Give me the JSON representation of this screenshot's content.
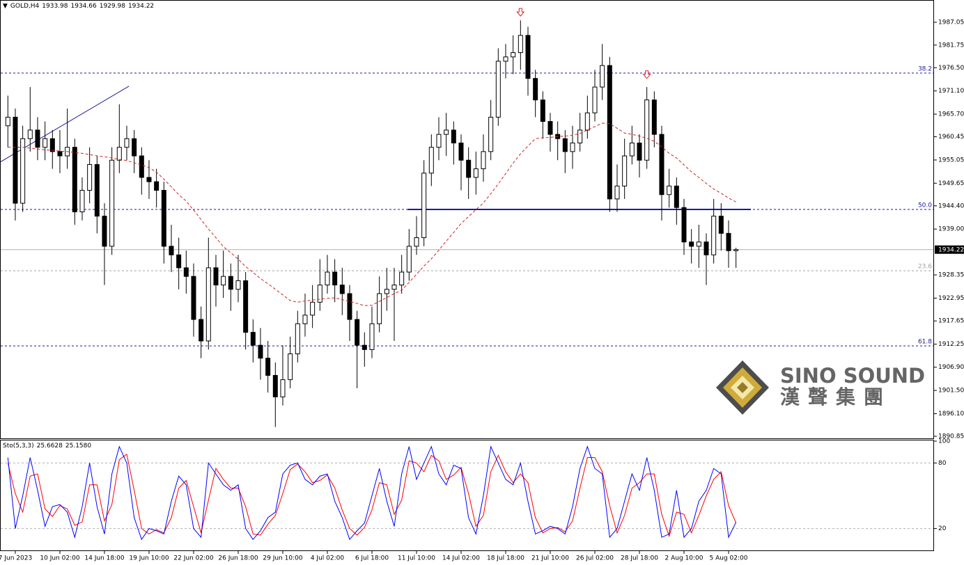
{
  "chart_data": [
    {
      "type": "candlestick",
      "title": "GOLD,H4",
      "ylim": [
        1890.85,
        1987.05
      ],
      "yticks": [
        1987.05,
        1981.75,
        {
          "value": 1976.5,
          "label": "1976.50"
        },
        {
          "value": 1971.1,
          "label": "1971.10"
        },
        {
          "value": 1965.7,
          "label": "1965.70"
        },
        1960.45,
        1955.05,
        1949.65,
        {
          "value": 1944.4,
          "label": "1944.40"
        },
        {
          "value": 1939,
          "label": "1939.00"
        },
        1928.35,
        1922.95,
        1917.65,
        1912.25,
        {
          "value": 1906.9,
          "label": "1906.90"
        },
        {
          "value": 1901.5,
          "label": "1901.50"
        },
        {
          "value": 1896.1,
          "label": "1896.10"
        },
        1890.85
      ],
      "xticks": [
        {
          "value": 1,
          "label": "7 Jun 2023"
        },
        {
          "value": 7,
          "label": "10 Jun 02:00"
        },
        {
          "value": 13,
          "label": "14 Jun 18:00"
        },
        {
          "value": 19,
          "label": "19 Jun 10:00"
        },
        {
          "value": 25,
          "label": "22 Jun 02:00"
        },
        {
          "value": 31,
          "label": "26 Jun 18:00"
        },
        {
          "value": 37,
          "label": "29 Jun 10:00"
        },
        {
          "value": 43,
          "label": "4 Jul 02:00"
        },
        {
          "value": 49,
          "label": "6 Jul 18:00"
        },
        {
          "value": 55,
          "label": "11 Jul 10:00"
        },
        {
          "value": 61,
          "label": "14 Jul 02:00"
        },
        {
          "value": 67,
          "label": "18 Jul 18:00"
        },
        {
          "value": 73,
          "label": "21 Jul 10:00"
        },
        {
          "value": 79,
          "label": "26 Jul 02:00"
        },
        {
          "value": 85,
          "label": "28 Jul 18:00"
        },
        {
          "value": 91,
          "label": "2 Aug 10:00"
        },
        {
          "value": 97,
          "label": "5 Aug 02:00"
        }
      ],
      "open": [
        1963,
        1965,
        1945,
        1960,
        1962,
        1958,
        1960,
        1957,
        1956,
        1958,
        1943,
        1948,
        1954,
        1942,
        1935,
        1955,
        1958,
        1960,
        1956,
        1951,
        1950,
        1948,
        1935,
        1933,
        1930,
        1928,
        1918,
        1913,
        1930,
        1926,
        1928,
        1925,
        1927,
        1915,
        1912,
        1909,
        1905,
        1900,
        1904,
        1910,
        1917,
        1919,
        1922,
        1926,
        1929,
        1926,
        1924,
        1918,
        1912,
        1911,
        1917,
        1924,
        1925,
        1926,
        1929,
        1935,
        1937,
        1952,
        1958,
        1961,
        1962,
        1959,
        1955,
        1951,
        1953,
        1957,
        1965,
        1978,
        1979,
        1980,
        1984,
        1974,
        1969,
        1964,
        1961,
        1960,
        1957,
        1959,
        1962,
        1966,
        1972,
        1977,
        1946,
        1949,
        1956,
        1959,
        1955,
        1969,
        1961,
        1947,
        1949,
        1944,
        1936,
        1935,
        1936,
        1933,
        1942,
        1938,
        1933.98
      ],
      "high": [
        1970,
        1967,
        1963,
        1972,
        1965,
        1964,
        1962,
        1962,
        1967,
        1960,
        1951,
        1958,
        1956,
        1945,
        1958,
        1968,
        1963,
        1962,
        1958,
        1955,
        1953,
        1950,
        1940,
        1937,
        1934,
        1931,
        1921,
        1937,
        1933,
        1934,
        1931,
        1933,
        1929,
        1918,
        1916,
        1913,
        1908,
        1912,
        1914,
        1920,
        1924,
        1926,
        1932,
        1933,
        1932,
        1930,
        1926,
        1920,
        1915,
        1921,
        1928,
        1930,
        1930,
        1933,
        1939,
        1942,
        1955,
        1961,
        1965,
        1966,
        1964,
        1961,
        1958,
        1957,
        1961,
        1969,
        1981,
        1982,
        1984,
        1987.5,
        1986,
        1976,
        1971,
        1966,
        1964,
        1962,
        1963,
        1966,
        1970,
        1976,
        1982,
        1979,
        1954,
        1960,
        1963,
        1961,
        1972,
        1971,
        1963,
        1953,
        1951,
        1946,
        1939,
        1940,
        1938,
        1946,
        1945,
        1941,
        1934.66
      ],
      "low": [
        1958,
        1941,
        1943,
        1957,
        1955,
        1955,
        1953,
        1952,
        1953,
        1940,
        1941,
        1945,
        1938,
        1926,
        1933,
        1952,
        1955,
        1952,
        1947,
        1946,
        1944,
        1931,
        1929,
        1925,
        1924,
        1914,
        1909,
        1911,
        1921,
        1923,
        1920,
        1922,
        1911,
        1908,
        1904,
        1901,
        1893,
        1898,
        1902,
        1908,
        1914,
        1916,
        1920,
        1924,
        1922,
        1919,
        1913,
        1902,
        1907,
        1909,
        1915,
        1920,
        1913,
        1924,
        1927,
        1933,
        1935,
        1949,
        1955,
        1956,
        1954,
        1948,
        1946,
        1947,
        1950,
        1955,
        1963,
        1974,
        1975,
        1976,
        1970,
        1965,
        1960,
        1957,
        1955,
        1952,
        1953,
        1957,
        1960,
        1964,
        1969,
        1943,
        1943,
        1946,
        1954,
        1951,
        1953,
        1958,
        1941,
        1944,
        1940,
        1933,
        1931,
        1930,
        1926,
        1931,
        1934,
        1930,
        1929.98
      ],
      "close": [
        1965,
        1945,
        1960,
        1962,
        1958,
        1960,
        1957,
        1956,
        1958,
        1943,
        1948,
        1954,
        1942,
        1935,
        1955,
        1958,
        1960,
        1956,
        1951,
        1950,
        1948,
        1935,
        1933,
        1930,
        1928,
        1918,
        1913,
        1930,
        1926,
        1928,
        1925,
        1927,
        1915,
        1912,
        1909,
        1905,
        1900,
        1904,
        1910,
        1917,
        1919,
        1922,
        1926,
        1929,
        1926,
        1924,
        1918,
        1912,
        1911,
        1917,
        1924,
        1925,
        1926,
        1929,
        1935,
        1937,
        1952,
        1958,
        1961,
        1962,
        1959,
        1955,
        1951,
        1953,
        1957,
        1965,
        1978,
        1979,
        1980,
        1984,
        1974,
        1969,
        1964,
        1961,
        1960,
        1957,
        1959,
        1962,
        1966,
        1972,
        1977,
        1946,
        1949,
        1956,
        1959,
        1955,
        1969,
        1961,
        1947,
        1949,
        1944,
        1936,
        1935,
        1936,
        1933,
        1942,
        1938,
        1933.98,
        1934.22
      ],
      "ma_color": "#d42020",
      "ma_values": [
        1958,
        1958,
        1958,
        1957.8,
        1957.6,
        1957.4,
        1957.3,
        1957.1,
        1957,
        1956.8,
        1956.6,
        1956.3,
        1956,
        1955.8,
        1955.5,
        1955.2,
        1954.9,
        1954.4,
        1953.9,
        1953.3,
        1952.2,
        1950.6,
        1948.8,
        1947,
        1945.5,
        1943.4,
        1941.2,
        1939,
        1937,
        1934.9,
        1933.5,
        1932,
        1930.3,
        1928.9,
        1927.5,
        1926.3,
        1925,
        1923.7,
        1922.4,
        1922,
        1922.3,
        1922.5,
        1922.7,
        1922.9,
        1923,
        1922.6,
        1922.2,
        1921.7,
        1921.2,
        1921.3,
        1922.2,
        1923.1,
        1924,
        1924.8,
        1926.6,
        1928.5,
        1930.4,
        1932.1,
        1934.1,
        1936.2,
        1938.2,
        1940.3,
        1941.9,
        1943.5,
        1945.1,
        1947.2,
        1949.5,
        1951.9,
        1954.3,
        1956.5,
        1958.3,
        1960,
        1960.2,
        1960.3,
        1960.5,
        1960.6,
        1960.8,
        1961.2,
        1962,
        1962.8,
        1963.6,
        1963.5,
        1962.4,
        1961.3,
        1961,
        1960.6,
        1960.1,
        1959.4,
        1958.1,
        1956.6,
        1955.5,
        1953.9,
        1952.3,
        1951,
        1949.6,
        1948.3,
        1947.3,
        1946.2,
        1945.3
      ],
      "fib_levels": [
        {
          "label": "38.2",
          "price": 1975.25,
          "color": "#1a1a9c"
        },
        {
          "label": "50.0",
          "price": 1943.55,
          "color": "#1a1a9c"
        },
        {
          "label": "23.6",
          "price": 1929.3,
          "color": "#a0a0a0"
        },
        {
          "label": "61.8",
          "price": 1911.85,
          "color": "#1a1a9c"
        }
      ],
      "lines": [
        {
          "color": "#1a1a9c",
          "from": [
            -1,
            1954.6
          ],
          "to": [
            16.3,
            1972.2
          ]
        },
        {
          "color": "#1a1a9c",
          "from": [
            53.8,
            1943.55
          ],
          "to": [
            100,
            1943.55
          ]
        }
      ],
      "markers": [
        {
          "index": 69,
          "price": 1989.3,
          "color": "#e02020"
        },
        {
          "index": 86,
          "price": 1974.8,
          "color": "#e02020"
        }
      ]
    },
    {
      "type": "line",
      "title": "Sto(5,3,3)",
      "ylim": [
        0,
        100
      ],
      "yticks": [
        100,
        80,
        20
      ],
      "series": [
        {
          "color": "#0000ff",
          "values": [
            85,
            20,
            50,
            85,
            55,
            22,
            40,
            42,
            35,
            12,
            40,
            80,
            40,
            15,
            70,
            95,
            80,
            30,
            10,
            20,
            18,
            15,
            45,
            68,
            60,
            20,
            12,
            80,
            70,
            60,
            55,
            60,
            20,
            10,
            18,
            30,
            35,
            70,
            78,
            80,
            65,
            60,
            68,
            70,
            45,
            30,
            10,
            18,
            25,
            50,
            75,
            45,
            22,
            70,
            95,
            65,
            80,
            95,
            70,
            60,
            78,
            75,
            30,
            15,
            50,
            95,
            80,
            65,
            60,
            80,
            45,
            15,
            18,
            22,
            20,
            15,
            40,
            75,
            95,
            75,
            70,
            12,
            20,
            45,
            70,
            55,
            85,
            55,
            12,
            15,
            55,
            12,
            20,
            45,
            55,
            75,
            70,
            12,
            25.6628
          ]
        },
        {
          "color": "#ff0000",
          "last_value_label": "25.1580",
          "values": [
            80,
            52,
            35,
            68,
            70,
            38,
            31,
            41,
            38,
            23,
            26,
            60,
            60,
            27,
            42,
            83,
            88,
            55,
            20,
            15,
            19,
            16,
            30,
            57,
            64,
            40,
            16,
            46,
            75,
            65,
            57,
            57,
            40,
            15,
            14,
            24,
            32,
            52,
            74,
            79,
            72,
            62,
            64,
            69,
            57,
            37,
            20,
            14,
            21,
            37,
            62,
            60,
            33,
            46,
            82,
            80,
            72,
            87,
            82,
            65,
            69,
            76,
            52,
            22,
            32,
            72,
            87,
            72,
            62,
            70,
            62,
            30,
            16,
            20,
            21,
            17,
            27,
            57,
            85,
            85,
            72,
            41,
            16,
            32,
            57,
            62,
            70,
            70,
            33,
            13,
            35,
            33,
            16,
            32,
            50,
            65,
            72,
            41,
            25.158
          ]
        }
      ]
    }
  ],
  "watermark": {
    "name": "SINO SOUND",
    "chinese": "漢聲集團"
  }
}
